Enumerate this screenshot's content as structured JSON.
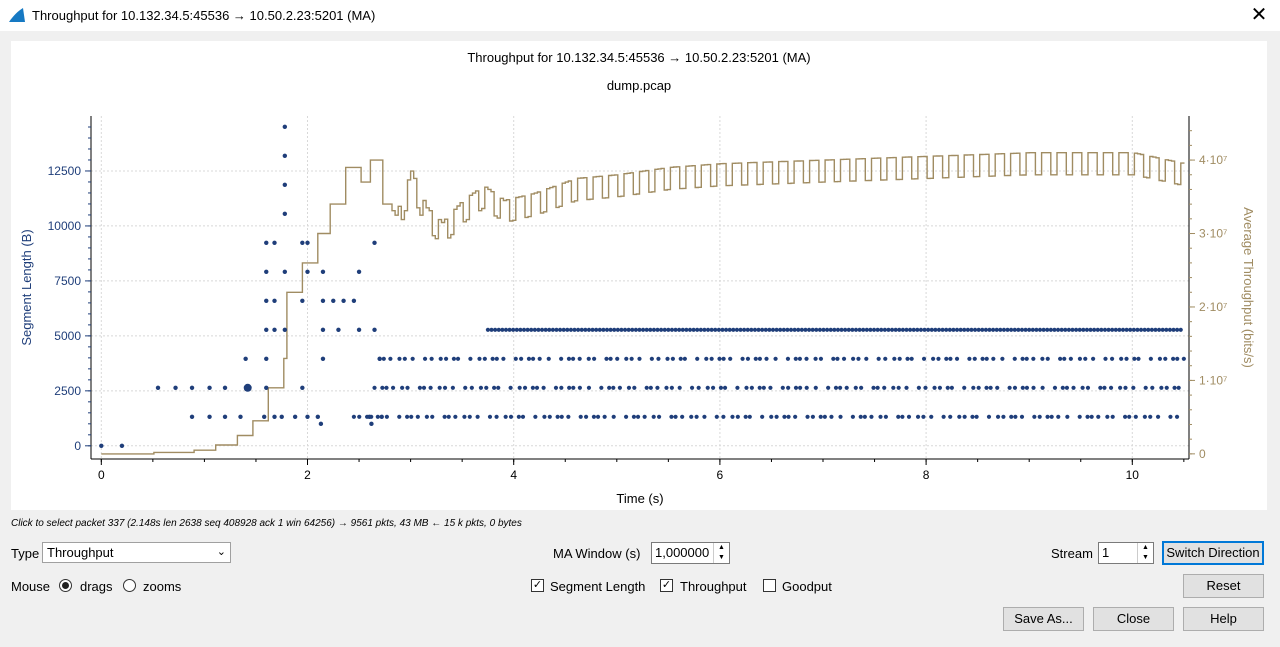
{
  "window": {
    "title": "Throughput for 10.132.34.5:45536 → 10.50.2.23:5201 (MA)",
    "close_glyph": "✕"
  },
  "plot": {
    "title": "Throughput for 10.132.34.5:45536 → 10.50.2.23:5201 (MA)",
    "subtitle": "dump.pcap"
  },
  "chart_data": {
    "type": "scatter",
    "title": "Throughput for 10.132.34.5:45536 → 10.50.2.23:5201 (MA)",
    "subtitle": "dump.pcap",
    "xlabel": "Time (s)",
    "ylabel": "Segment Length (B)",
    "y2label": "Average Throughput (bits/s)",
    "xlim": [
      -0.1,
      10.55
    ],
    "ylim": [
      -600,
      15000
    ],
    "y2lim": [
      -700000,
      46000000
    ],
    "x_ticks": [
      "0",
      "2",
      "4",
      "6",
      "8",
      "10"
    ],
    "y_ticks": [
      "0",
      "2500",
      "5000",
      "7500",
      "10000",
      "12500"
    ],
    "y2_ticks": [
      "0",
      "1·10⁷",
      "2·10⁷",
      "3·10⁷",
      "4·10⁷"
    ],
    "grid": true,
    "colors": {
      "segment": "#1f3e7a",
      "throughput": "#a08c62"
    },
    "series": [
      {
        "name": "Segment Length",
        "type": "scatter",
        "points": [
          [
            0.0,
            0
          ],
          [
            0.2,
            0
          ],
          [
            0.55,
            2638
          ],
          [
            0.72,
            2638
          ],
          [
            0.88,
            1319
          ],
          [
            0.88,
            2638
          ],
          [
            1.05,
            1319
          ],
          [
            1.05,
            2638
          ],
          [
            1.2,
            1319
          ],
          [
            1.2,
            2638
          ],
          [
            1.35,
            1319
          ],
          [
            1.4,
            3957
          ],
          [
            1.42,
            2638
          ],
          [
            1.58,
            1319
          ],
          [
            1.6,
            2638
          ],
          [
            1.6,
            3957
          ],
          [
            1.6,
            5276
          ],
          [
            1.6,
            6595
          ],
          [
            1.6,
            7914
          ],
          [
            1.6,
            9233
          ],
          [
            1.68,
            1319
          ],
          [
            1.68,
            5276
          ],
          [
            1.68,
            6595
          ],
          [
            1.68,
            9233
          ],
          [
            1.75,
            1319
          ],
          [
            1.78,
            5276
          ],
          [
            1.78,
            7914
          ],
          [
            1.78,
            10552
          ],
          [
            1.78,
            11871
          ],
          [
            1.78,
            13190
          ],
          [
            1.78,
            14509
          ],
          [
            1.88,
            1319
          ],
          [
            1.95,
            2638
          ],
          [
            1.95,
            6595
          ],
          [
            1.95,
            9233
          ],
          [
            2.0,
            1319
          ],
          [
            2.0,
            7914
          ],
          [
            2.0,
            9233
          ],
          [
            2.1,
            1319
          ],
          [
            2.13,
            1000
          ],
          [
            2.15,
            3957
          ],
          [
            2.15,
            5276
          ],
          [
            2.15,
            6595
          ],
          [
            2.15,
            7914
          ],
          [
            2.25,
            6595
          ],
          [
            2.3,
            5276
          ],
          [
            2.35,
            6595
          ],
          [
            2.45,
            6595
          ],
          [
            2.5,
            5276
          ],
          [
            2.5,
            7914
          ],
          [
            2.6,
            1319
          ],
          [
            2.62,
            1000
          ],
          [
            2.65,
            5276
          ],
          [
            2.65,
            9233
          ],
          [
            2.7,
            3957
          ],
          [
            2.72,
            1319
          ]
        ],
        "repeating_bands": [
          {
            "value": 5276,
            "x_from": 3.75,
            "x_to": 10.5
          },
          {
            "value": 3957,
            "x_from": 2.7,
            "x_to": 10.5
          },
          {
            "value": 2638,
            "x_from": 2.65,
            "x_to": 10.5
          },
          {
            "value": 1319,
            "x_from": 2.45,
            "x_to": 10.5
          }
        ]
      },
      {
        "name": "Throughput",
        "type": "step",
        "axis": "y2",
        "points": [
          [
            0.0,
            0
          ],
          [
            0.5,
            200000
          ],
          [
            0.9,
            500000
          ],
          [
            1.1,
            1200000
          ],
          [
            1.3,
            2500000
          ],
          [
            1.45,
            4500000
          ],
          [
            1.6,
            9000000
          ],
          [
            1.75,
            13000000
          ],
          [
            1.8,
            22000000
          ],
          [
            1.95,
            26000000
          ],
          [
            2.1,
            30000000
          ],
          [
            2.2,
            34000000
          ],
          [
            2.35,
            39000000
          ],
          [
            2.5,
            37000000
          ],
          [
            2.6,
            40000000
          ],
          [
            2.7,
            34000000
          ],
          [
            2.85,
            31000000
          ],
          [
            3.0,
            37000000
          ],
          [
            3.15,
            32000000
          ],
          [
            3.3,
            30000000
          ],
          [
            3.5,
            33000000
          ],
          [
            3.7,
            35000000
          ],
          [
            3.9,
            33000000
          ],
          [
            4.2,
            34000000
          ],
          [
            4.6,
            36000000
          ],
          [
            5.0,
            36500000
          ],
          [
            5.5,
            37500000
          ],
          [
            6.0,
            38000000
          ],
          [
            7.0,
            38500000
          ],
          [
            8.0,
            39000000
          ],
          [
            9.0,
            39500000
          ],
          [
            10.0,
            39500000
          ],
          [
            10.5,
            38000000
          ]
        ],
        "oscillation": {
          "period_s": 0.15,
          "amplitude": 3000000,
          "x_from": 2.8,
          "x_to": 10.5
        }
      }
    ]
  },
  "status_text": "Click to select packet 337 (2.148s len 2638 seq 408928 ack 1 win 64256) → 9561 pkts, 43 MB ← 15 k pkts, 0 bytes",
  "controls": {
    "type_label": "Type",
    "type_value": "Throughput",
    "ma_label": "MA Window (s)",
    "ma_value": "1,000000",
    "stream_label": "Stream",
    "stream_value": "1",
    "switch_direction": "Switch Direction",
    "mouse_label": "Mouse",
    "drags_label": "drags",
    "zooms_label": "zooms",
    "segment_length_label": "Segment Length",
    "throughput_label": "Throughput",
    "goodput_label": "Goodput",
    "reset": "Reset",
    "save_as": "Save As...",
    "close": "Close",
    "help": "Help",
    "check_glyph": "✓",
    "spin_up": "▲",
    "spin_down": "▼",
    "combo_arrow": "⌄"
  }
}
